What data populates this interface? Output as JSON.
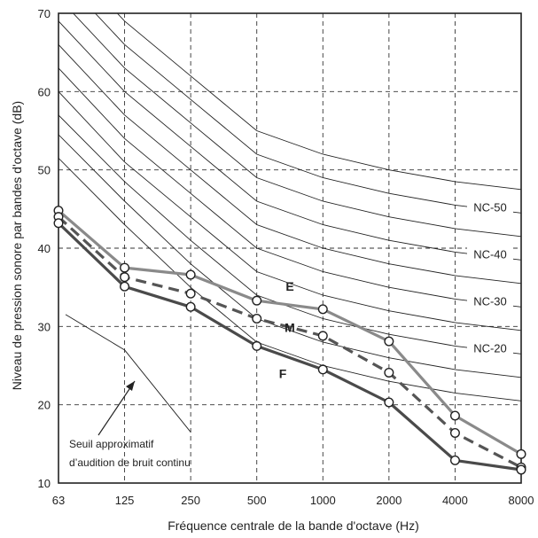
{
  "chart_data": {
    "type": "line",
    "xlabel": "Fréquence centrale de la bande d'octave (Hz)",
    "ylabel": "Niveau de pression sonore par bandes d'octave (dB)",
    "x_categories": [
      "63",
      "125",
      "250",
      "500",
      "1000",
      "2000",
      "4000",
      "8000"
    ],
    "ylim": [
      10,
      70
    ],
    "yticks": [
      10,
      20,
      30,
      40,
      50,
      60,
      70
    ],
    "grid": "dashed",
    "nc_curves": [
      {
        "values": [
          51.5,
          43,
          35,
          28,
          25,
          23,
          21.5,
          20.5
        ],
        "label": ""
      },
      {
        "values": [
          54.5,
          46,
          38,
          31,
          28,
          26,
          24.5,
          23.5
        ],
        "label": "NC-20"
      },
      {
        "values": [
          57,
          48.5,
          41,
          34,
          31,
          29,
          27.5,
          26.5
        ],
        "label": ""
      },
      {
        "values": [
          60,
          51,
          44,
          37,
          34,
          32,
          30.5,
          29.5
        ],
        "label": "NC-30"
      },
      {
        "values": [
          63,
          54,
          47,
          40,
          37,
          35,
          33.5,
          32.5
        ],
        "label": ""
      },
      {
        "values": [
          66,
          57,
          50,
          43,
          40,
          38,
          36.5,
          35.5
        ],
        "label": "NC-40"
      },
      {
        "values": [
          69,
          60,
          53,
          46,
          43,
          41,
          39.5,
          38.5
        ],
        "label": ""
      },
      {
        "values": [
          72,
          63,
          56,
          49,
          46,
          44,
          42.5,
          41.5
        ],
        "label": "NC-50"
      },
      {
        "values": [
          75,
          66,
          59,
          52,
          49,
          47,
          45.5,
          44.5
        ],
        "label": ""
      },
      {
        "values": [
          78,
          69,
          62,
          55,
          52,
          50,
          48.5,
          47.5
        ],
        "label": ""
      }
    ],
    "series": [
      {
        "name": "E",
        "values": [
          44.8,
          37.5,
          36.6,
          33.3,
          32.2,
          28.1,
          18.6,
          13.7
        ],
        "color": "#8a8a8a",
        "dash": false
      },
      {
        "name": "M",
        "values": [
          44.0,
          36.3,
          34.2,
          31.0,
          28.8,
          24.1,
          16.4,
          12.0
        ],
        "color": "#555555",
        "dash": true
      },
      {
        "name": "F",
        "values": [
          43.2,
          35.1,
          32.5,
          27.5,
          24.5,
          20.3,
          12.9,
          11.7
        ],
        "color": "#4a4a4a",
        "dash": false
      }
    ],
    "annotation": {
      "lines": [
        "Seuil approximatif",
        "d’audition de bruit continu"
      ],
      "threshold_values": [
        {
          "x": "125",
          "y": 27
        },
        {
          "x": "250",
          "y": 16.5
        }
      ]
    }
  }
}
